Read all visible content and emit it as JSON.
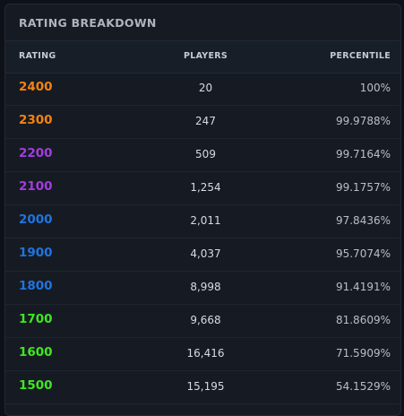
{
  "title": "RATING BREAKDOWN",
  "table": {
    "headers": [
      "RATING",
      "PLAYERS",
      "PERCENTILE"
    ],
    "rows": [
      {
        "rating": "2400",
        "players": "20",
        "percentile": "100%",
        "color": "#f5820f"
      },
      {
        "rating": "2300",
        "players": "247",
        "percentile": "99.9788%",
        "color": "#f5820f"
      },
      {
        "rating": "2200",
        "players": "509",
        "percentile": "99.7164%",
        "color": "#a33ce0"
      },
      {
        "rating": "2100",
        "players": "1,254",
        "percentile": "99.1757%",
        "color": "#a33ce0"
      },
      {
        "rating": "2000",
        "players": "2,011",
        "percentile": "97.8436%",
        "color": "#1f74e0"
      },
      {
        "rating": "1900",
        "players": "4,037",
        "percentile": "95.7074%",
        "color": "#1f74e0"
      },
      {
        "rating": "1800",
        "players": "8,998",
        "percentile": "91.4191%",
        "color": "#1f74e0"
      },
      {
        "rating": "1700",
        "players": "9,668",
        "percentile": "81.8609%",
        "color": "#3ee81e"
      },
      {
        "rating": "1600",
        "players": "16,416",
        "percentile": "71.5909%",
        "color": "#3ee81e"
      },
      {
        "rating": "1500",
        "players": "15,195",
        "percentile": "54.1529%",
        "color": "#3ee81e"
      }
    ]
  }
}
